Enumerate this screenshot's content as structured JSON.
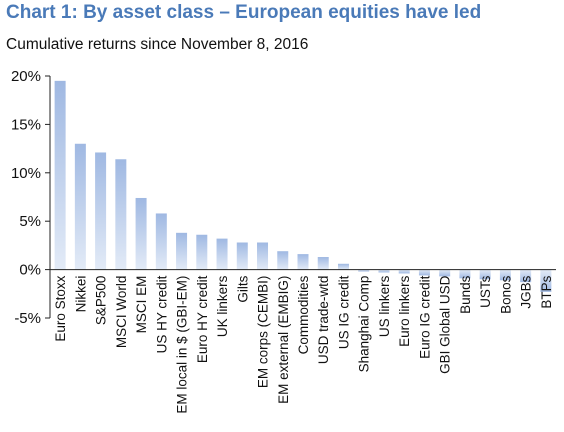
{
  "chart_data": {
    "type": "bar",
    "title": "Chart 1: By asset class – European equities have led",
    "subtitle": "Cumulative returns since November 8, 2016",
    "xlabel": "",
    "ylabel": "",
    "ylim": [
      -5,
      20
    ],
    "yticks": [
      "20%",
      "15%",
      "10%",
      "5%",
      "0%",
      "-5%"
    ],
    "grid": false,
    "bar_color": "#9fb8e2",
    "categories": [
      "Euro Stoxx",
      "Nikkei",
      "S&P500",
      "MSCI World",
      "MSCI EM",
      "US HY credit",
      "EM local in $ (GBI-EM)",
      "Euro HY credit",
      "UK linkers",
      "Gilts",
      "EM corps (CEMBI)",
      "EM external (EMBIG)",
      "Commodities",
      "USD trade-wtd",
      "US IG credit",
      "Shanghai Comp",
      "US linkers",
      "Euro linkers",
      "Euro IG credit",
      "GBI Global USD",
      "Bunds",
      "USTs",
      "Bonos",
      "JGBs",
      "BTPs"
    ],
    "values": [
      19.5,
      13.0,
      12.1,
      11.4,
      7.4,
      5.8,
      3.8,
      3.6,
      3.2,
      2.8,
      2.8,
      1.9,
      1.6,
      1.3,
      0.6,
      -0.2,
      -0.3,
      -0.4,
      -0.6,
      -0.7,
      -0.9,
      -1.0,
      -1.1,
      -1.3,
      -2.3
    ]
  }
}
